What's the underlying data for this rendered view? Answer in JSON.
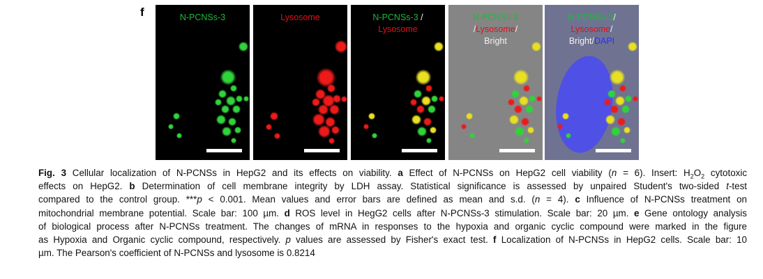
{
  "figure": {
    "panel_letter": "f",
    "panels": [
      {
        "lines": [
          [
            {
              "t": "N-PCNSs-3",
              "c": "g"
            }
          ]
        ]
      },
      {
        "lines": [
          [
            {
              "t": "Lysosome",
              "c": "r"
            }
          ]
        ]
      },
      {
        "lines": [
          [
            {
              "t": "N-PCNSs-3",
              "c": "g"
            },
            {
              "t": " /",
              "c": "w"
            }
          ],
          [
            {
              "t": "Lysosome",
              "c": "r"
            }
          ]
        ]
      },
      {
        "lines": [
          [
            {
              "t": "N-PCNSs-3",
              "c": "g"
            }
          ],
          [
            {
              "t": "/",
              "c": "w"
            },
            {
              "t": "Lysosome",
              "c": "r"
            },
            {
              "t": "/",
              "c": "w"
            }
          ],
          [
            {
              "t": "Bright",
              "c": "w"
            }
          ]
        ]
      },
      {
        "lines": [
          [
            {
              "t": "N-PCNSs-3",
              "c": "g"
            },
            {
              "t": "/",
              "c": "w"
            }
          ],
          [
            {
              "t": "Lysosome",
              "c": "r"
            },
            {
              "t": "/",
              "c": "w"
            }
          ],
          [
            {
              "t": "Bright/",
              "c": "w"
            },
            {
              "t": "DAPI",
              "c": "b"
            }
          ]
        ]
      }
    ]
  },
  "caption": [
    [
      {
        "t": "Fig. 3",
        "s": "bold"
      },
      {
        "t": " Cellular localization of N-PCNSs in HepG2 and its effects on viability. "
      },
      {
        "t": "a",
        "s": "bold"
      },
      {
        "t": " Effect of N-PCNSs on HepG2 cell viability ("
      },
      {
        "t": "n",
        "s": "ital"
      },
      {
        "t": " = 6). Insert: H"
      },
      {
        "t": "2",
        "s": "sub"
      },
      {
        "t": "O"
      },
      {
        "t": "2",
        "s": "sub"
      },
      {
        "t": " cytotoxic"
      }
    ],
    [
      {
        "t": "effects on HepG2. "
      },
      {
        "t": "b",
        "s": "bold"
      },
      {
        "t": " Determination of cell membrane integrity by LDH assay. Statistical significance is assessed by unpaired Student's two-sided "
      },
      {
        "t": "t",
        "s": "ital"
      },
      {
        "t": "-test"
      }
    ],
    [
      {
        "t": "compared to the control group. ***"
      },
      {
        "t": "p",
        "s": "ital"
      },
      {
        "t": " < 0.001. Mean values and error bars are defined as mean and s.d. ("
      },
      {
        "t": "n",
        "s": "ital"
      },
      {
        "t": " = 4). "
      },
      {
        "t": "c",
        "s": "bold"
      },
      {
        "t": " Influence of N-PCNSs treatment on"
      }
    ],
    [
      {
        "t": "mitochondrial membrane potential. Scale bar: 100 µm. "
      },
      {
        "t": "d",
        "s": "bold"
      },
      {
        "t": " ROS level in HegG2 cells after N-PCNSs-3 stimulation. Scale bar: 20 µm. "
      },
      {
        "t": "e",
        "s": "bold"
      },
      {
        "t": " Gene ontology analysis"
      }
    ],
    [
      {
        "t": "of biological process after N-PCNSs treatment. The changes of mRNA in responses to the hypoxia and organic cyclic compound were marked in the figure"
      }
    ],
    [
      {
        "t": "as Hypoxia and Organic cyclic compound, respectively. "
      },
      {
        "t": "p",
        "s": "ital"
      },
      {
        "t": " values are assessed by Fisher's exact test. "
      },
      {
        "t": "f",
        "s": "bold"
      },
      {
        "t": " Localization of N-PCNSs in HepG2 cells. Scale bar: 10"
      }
    ],
    [
      {
        "t": "µm. The Pearson's coefficient of N-PCNSs and lysosome is 0.8214"
      }
    ]
  ],
  "colors": {
    "green": "#2fd43a",
    "red": "#ee1a1a",
    "yellow": "#e8e020",
    "blue": "#4a4cf0"
  }
}
